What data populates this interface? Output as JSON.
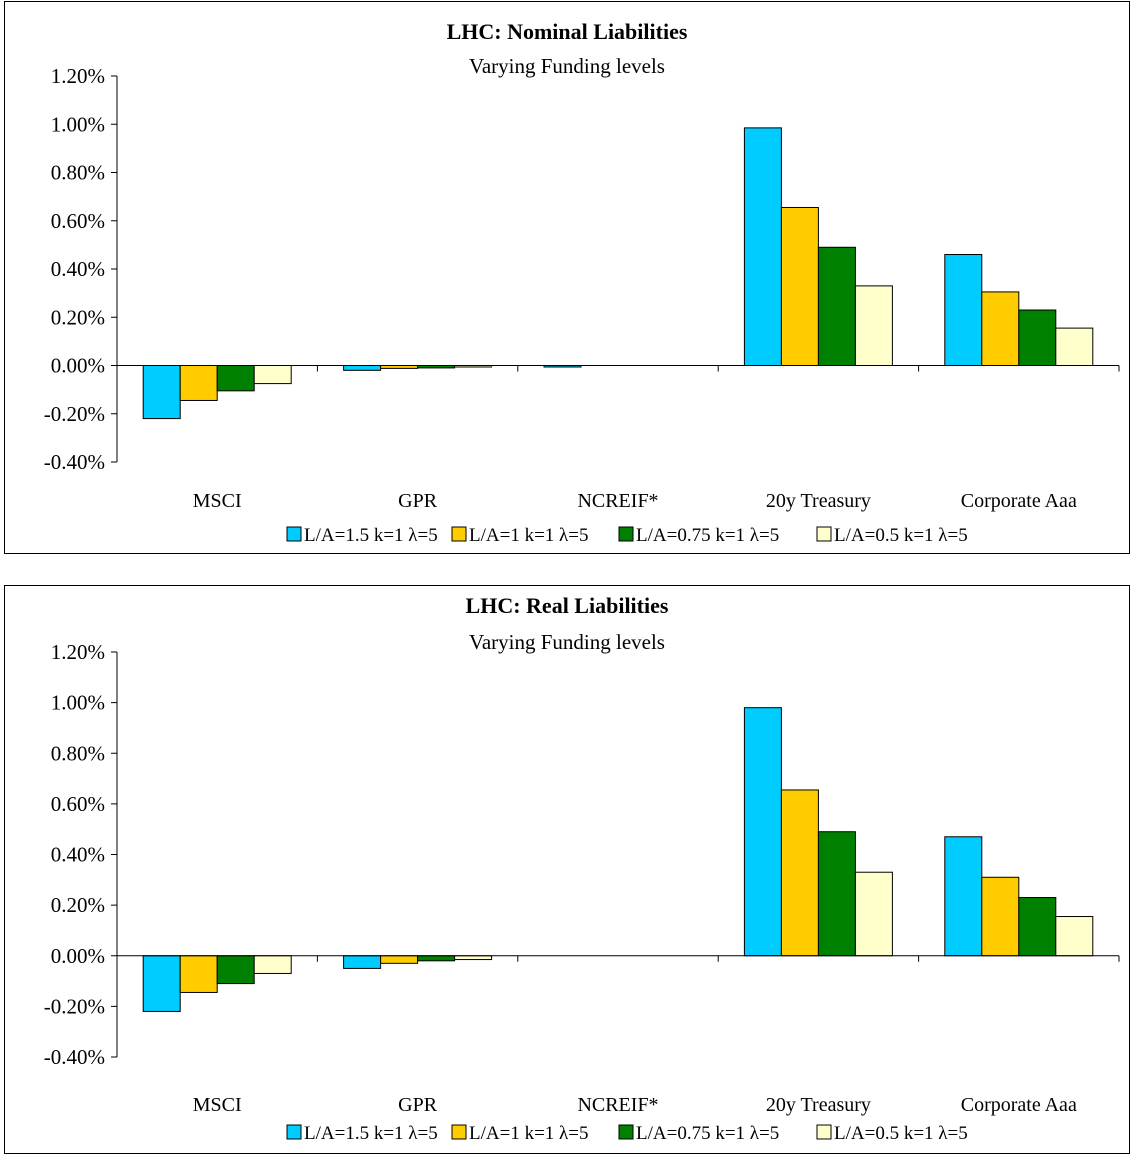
{
  "chart_data": [
    {
      "type": "bar",
      "title": "LHC: Nominal Liabilities",
      "subtitle": "Varying Funding levels",
      "categories": [
        "MSCI",
        "GPR",
        "NCREIF*",
        "20y Treasury",
        "Corporate Aaa"
      ],
      "ylim": [
        -0.4,
        1.2
      ],
      "yticks": [
        "1.20%",
        "1.00%",
        "0.80%",
        "0.60%",
        "0.40%",
        "0.20%",
        "0.00%",
        "-0.20%",
        "-0.40%"
      ],
      "ytick_values": [
        1.2,
        1.0,
        0.8,
        0.6,
        0.4,
        0.2,
        0.0,
        -0.2,
        -0.4
      ],
      "grid": false,
      "legend_position": "bottom-right",
      "series": [
        {
          "name": "L/A=1.5 k=1 λ=5",
          "color": "#00CCFF",
          "values": [
            -0.22,
            -0.02,
            -0.005,
            0.985,
            0.46
          ]
        },
        {
          "name": "L/A=1 k=1 λ=5",
          "color": "#FFCC00",
          "values": [
            -0.145,
            -0.012,
            0.0,
            0.655,
            0.305
          ]
        },
        {
          "name": "L/A=0.75 k=1 λ=5",
          "color": "#008000",
          "values": [
            -0.105,
            -0.01,
            0.0,
            0.49,
            0.23
          ]
        },
        {
          "name": "L/A=0.5 k=1 λ=5",
          "color": "#FFFFCC",
          "values": [
            -0.075,
            -0.006,
            0.0,
            0.33,
            0.155
          ]
        }
      ]
    },
    {
      "type": "bar",
      "title": "LHC: Real Liabilities",
      "subtitle": "Varying Funding levels",
      "categories": [
        "MSCI",
        "GPR",
        "NCREIF*",
        "20y Treasury",
        "Corporate Aaa"
      ],
      "ylim": [
        -0.4,
        1.2
      ],
      "yticks": [
        "1.20%",
        "1.00%",
        "0.80%",
        "0.60%",
        "0.40%",
        "0.20%",
        "0.00%",
        "-0.20%",
        "-0.40%"
      ],
      "ytick_values": [
        1.2,
        1.0,
        0.8,
        0.6,
        0.4,
        0.2,
        0.0,
        -0.2,
        -0.4
      ],
      "grid": false,
      "legend_position": "bottom-right",
      "series": [
        {
          "name": "L/A=1.5 k=1 λ=5",
          "color": "#00CCFF",
          "values": [
            -0.22,
            -0.05,
            0.0,
            0.98,
            0.47
          ]
        },
        {
          "name": "L/A=1 k=1 λ=5",
          "color": "#FFCC00",
          "values": [
            -0.145,
            -0.03,
            0.0,
            0.655,
            0.31
          ]
        },
        {
          "name": "L/A=0.75 k=1 λ=5",
          "color": "#008000",
          "values": [
            -0.11,
            -0.02,
            0.0,
            0.49,
            0.23
          ]
        },
        {
          "name": "L/A=0.5 k=1 λ=5",
          "color": "#FFFFCC",
          "values": [
            -0.07,
            -0.015,
            0.0,
            0.33,
            0.155
          ]
        }
      ]
    }
  ]
}
